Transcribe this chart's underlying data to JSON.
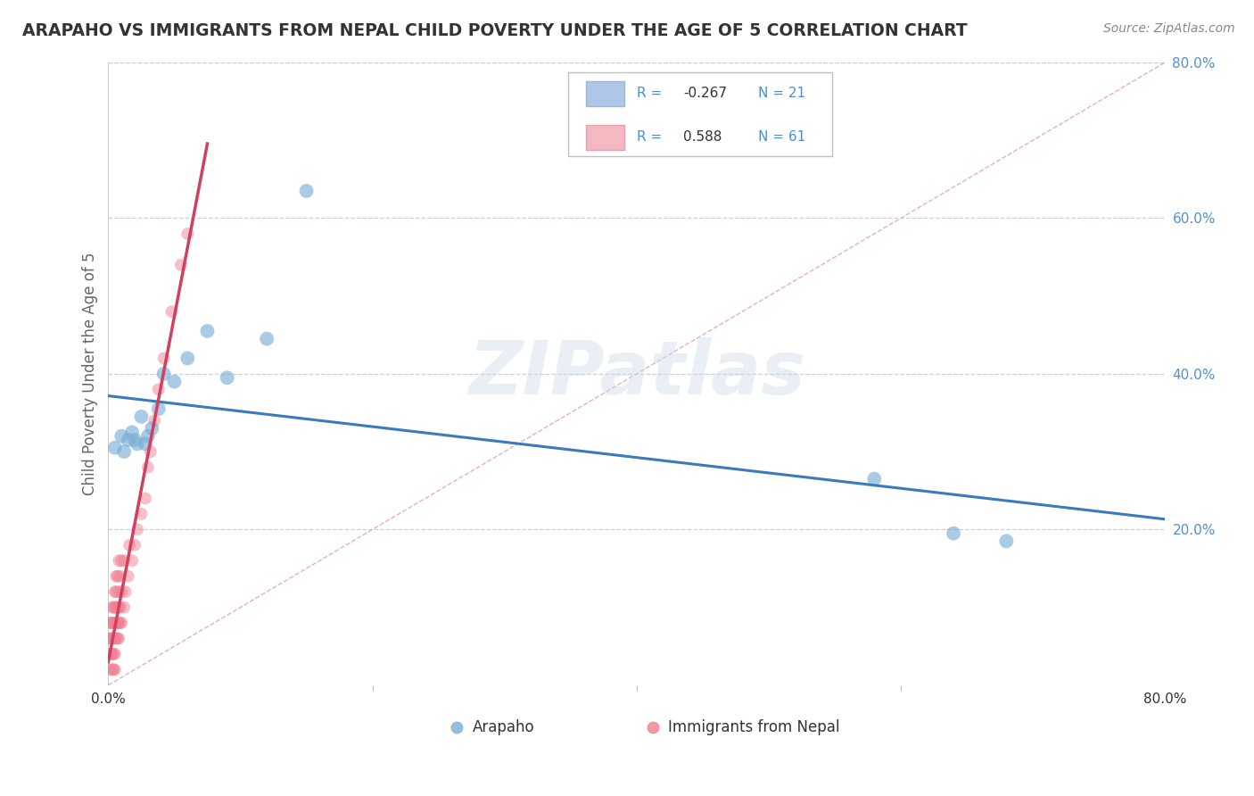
{
  "title": "ARAPAHO VS IMMIGRANTS FROM NEPAL CHILD POVERTY UNDER THE AGE OF 5 CORRELATION CHART",
  "source": "Source: ZipAtlas.com",
  "ylabel": "Child Poverty Under the Age of 5",
  "watermark_text": "ZIPatlas",
  "xlim": [
    0.0,
    0.8
  ],
  "ylim": [
    0.0,
    0.8
  ],
  "ytick_vals": [
    0.0,
    0.2,
    0.4,
    0.6,
    0.8
  ],
  "ytick_labels": [
    "",
    "20.0%",
    "40.0%",
    "60.0%",
    "80.0%"
  ],
  "xtick_vals": [
    0.0,
    0.8
  ],
  "xtick_labels": [
    "0.0%",
    "80.0%"
  ],
  "arapaho_color": "#7bafd4",
  "nepal_color": "#f08090",
  "arapaho_trend_color": "#3a7abf",
  "nepal_trend_color": "#d04060",
  "ref_line_color": "#e8b0b8",
  "grid_color": "#c8d0dc",
  "background_color": "#ffffff",
  "legend_box_color": "#ffffff",
  "legend_border_color": "#c0c0c0",
  "ytick_label_color": "#5090d0",
  "title_color": "#333333",
  "source_color": "#888888",
  "ylabel_color": "#666666",
  "arapaho_x": [
    0.005,
    0.01,
    0.012,
    0.015,
    0.018,
    0.02,
    0.022,
    0.025,
    0.028,
    0.03,
    0.033,
    0.038,
    0.042,
    0.05,
    0.06,
    0.075,
    0.09,
    0.12,
    0.15,
    0.58,
    0.64,
    0.68
  ],
  "arapaho_y": [
    0.305,
    0.32,
    0.3,
    0.315,
    0.325,
    0.315,
    0.31,
    0.345,
    0.31,
    0.32,
    0.33,
    0.355,
    0.4,
    0.39,
    0.42,
    0.455,
    0.395,
    0.445,
    0.635,
    0.265,
    0.195,
    0.185
  ],
  "nepal_x": [
    0.001,
    0.001,
    0.001,
    0.002,
    0.002,
    0.002,
    0.002,
    0.003,
    0.003,
    0.003,
    0.003,
    0.003,
    0.004,
    0.004,
    0.004,
    0.004,
    0.004,
    0.005,
    0.005,
    0.005,
    0.005,
    0.005,
    0.005,
    0.006,
    0.006,
    0.006,
    0.006,
    0.006,
    0.007,
    0.007,
    0.007,
    0.007,
    0.008,
    0.008,
    0.008,
    0.008,
    0.008,
    0.009,
    0.009,
    0.009,
    0.01,
    0.01,
    0.01,
    0.012,
    0.012,
    0.013,
    0.015,
    0.016,
    0.018,
    0.02,
    0.022,
    0.025,
    0.028,
    0.03,
    0.032,
    0.035,
    0.038,
    0.042,
    0.048,
    0.055,
    0.06
  ],
  "nepal_y": [
    0.04,
    0.06,
    0.08,
    0.02,
    0.04,
    0.06,
    0.08,
    0.02,
    0.04,
    0.06,
    0.08,
    0.1,
    0.02,
    0.04,
    0.06,
    0.08,
    0.1,
    0.02,
    0.04,
    0.06,
    0.08,
    0.1,
    0.12,
    0.06,
    0.08,
    0.1,
    0.12,
    0.14,
    0.06,
    0.08,
    0.1,
    0.14,
    0.06,
    0.08,
    0.1,
    0.12,
    0.16,
    0.08,
    0.1,
    0.14,
    0.08,
    0.12,
    0.16,
    0.1,
    0.16,
    0.12,
    0.14,
    0.18,
    0.16,
    0.18,
    0.2,
    0.22,
    0.24,
    0.28,
    0.3,
    0.34,
    0.38,
    0.42,
    0.48,
    0.54,
    0.58
  ],
  "scatter_size": 100,
  "scatter_alpha": 0.5,
  "trend_linewidth": 2.2,
  "ref_line_style": "--"
}
